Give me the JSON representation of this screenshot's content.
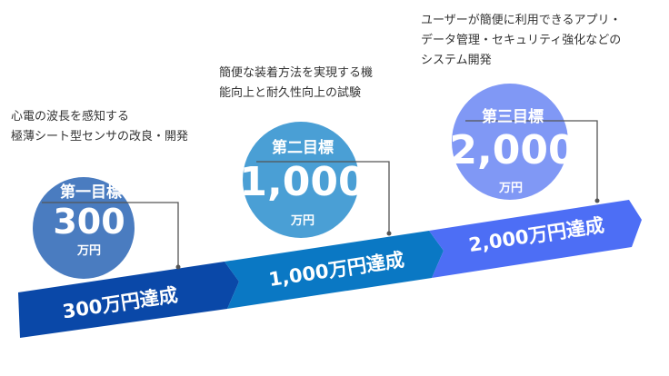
{
  "colors": {
    "band": [
      "#0a48a8",
      "#0a78c4",
      "#4d6ef5"
    ],
    "circle": [
      "#4a7cc0",
      "#4a9fd5",
      "#8098f5"
    ],
    "connector": "#555555"
  },
  "goals": [
    {
      "title": "第一目標",
      "amount": "300",
      "unit": "万円",
      "band_label": "300万円達成",
      "description": [
        "心電の波長を感知する",
        "極薄シート型センサの改良・開発"
      ]
    },
    {
      "title": "第二目標",
      "amount": "1,000",
      "unit": "万円",
      "band_label": "1,000万円達成",
      "description": [
        "簡便な装着方法を実現する機",
        "能向上と耐久性向上の試験"
      ]
    },
    {
      "title": "第三目標",
      "amount": "2,000",
      "unit": "万円",
      "band_label": "2,000万円達成",
      "description": [
        "ユーザーが簡便に利用できるアプリ・",
        "データ管理・セキュリティ強化などの",
        "システム開発"
      ]
    }
  ]
}
